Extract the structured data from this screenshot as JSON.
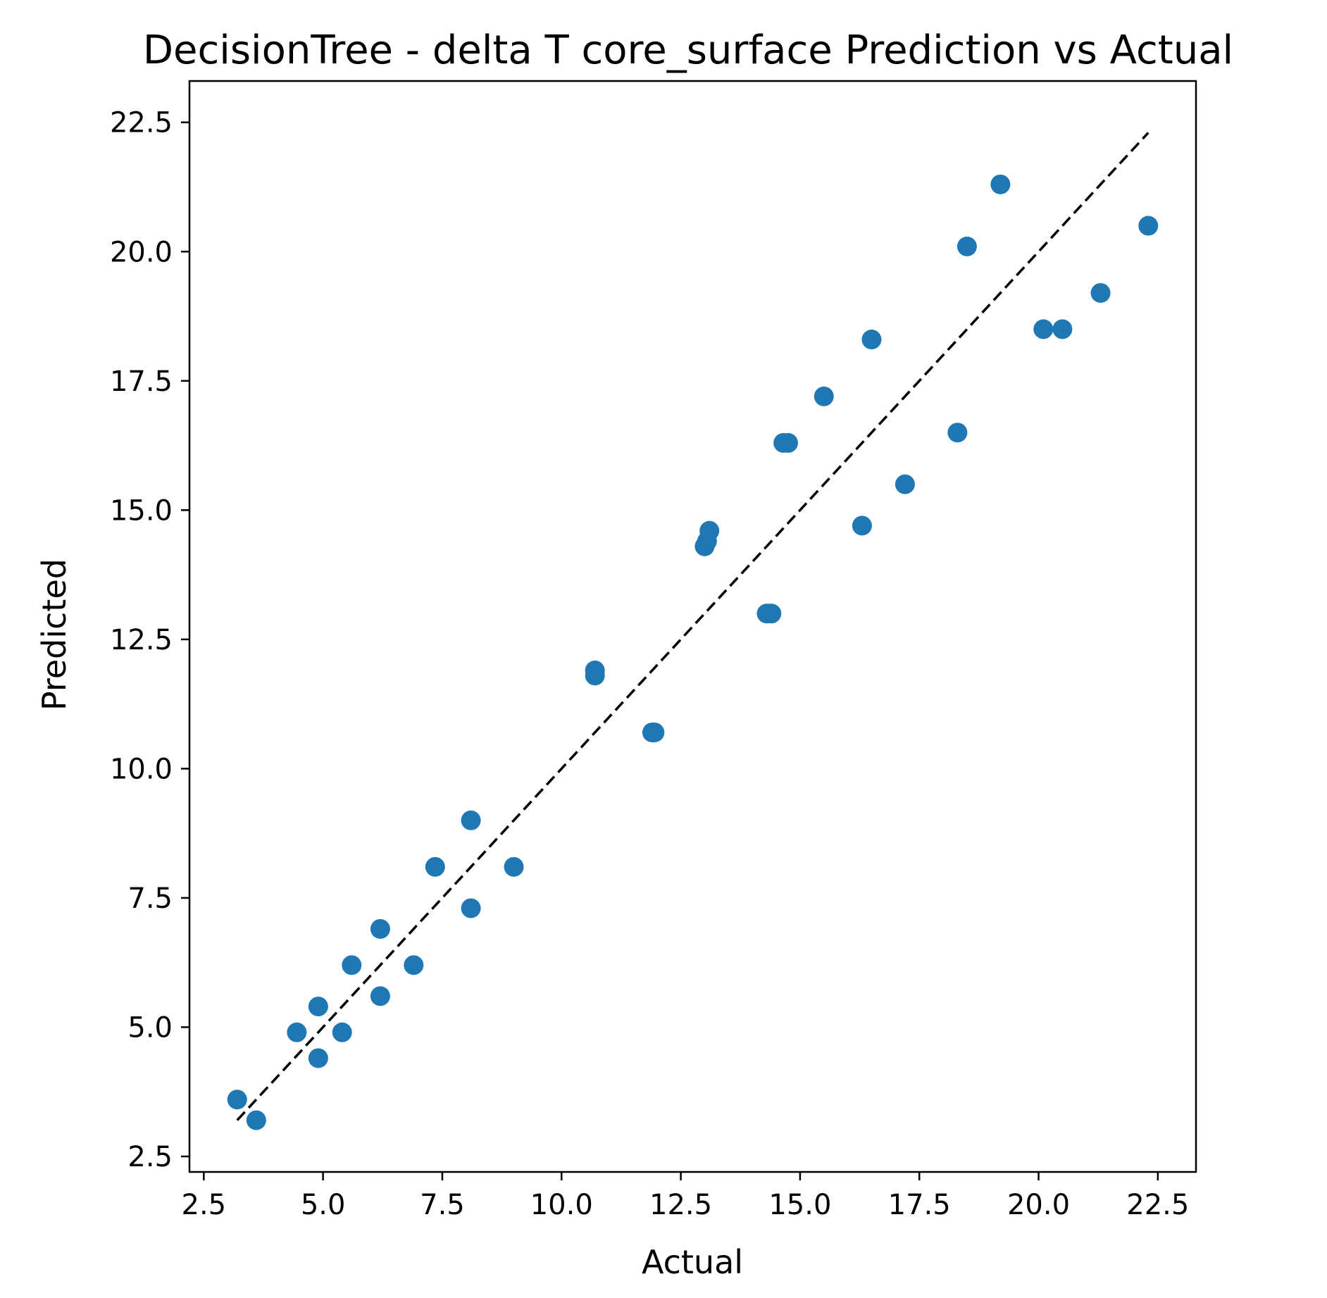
{
  "chart_data": {
    "type": "scatter",
    "title": "DecisionTree - delta T core_surface Prediction vs Actual",
    "xlabel": "Actual",
    "ylabel": "Predicted",
    "xlim": [
      2.2,
      23.3
    ],
    "ylim": [
      2.2,
      23.3
    ],
    "xticks": [
      2.5,
      5.0,
      7.5,
      10.0,
      12.5,
      15.0,
      17.5,
      20.0,
      22.5
    ],
    "yticks": [
      2.5,
      5.0,
      7.5,
      10.0,
      12.5,
      15.0,
      17.5,
      20.0,
      22.5
    ],
    "xtick_labels": [
      "2.5",
      "5.0",
      "7.5",
      "10.0",
      "12.5",
      "15.0",
      "17.5",
      "20.0",
      "22.5"
    ],
    "ytick_labels": [
      "2.5",
      "5.0",
      "7.5",
      "10.0",
      "12.5",
      "15.0",
      "17.5",
      "20.0",
      "22.5"
    ],
    "grid": false,
    "marker_color": "#1f77b4",
    "reference_line": {
      "style": "dashed",
      "color": "#000000",
      "from": [
        3.2,
        3.2
      ],
      "to": [
        22.3,
        22.3
      ]
    },
    "series": [
      {
        "name": "predictions",
        "x": [
          3.2,
          3.6,
          4.45,
          4.9,
          4.9,
          5.4,
          5.6,
          6.2,
          6.2,
          6.9,
          7.35,
          8.1,
          8.1,
          9.0,
          10.7,
          10.7,
          11.9,
          11.95,
          13.0,
          13.05,
          13.1,
          14.3,
          14.4,
          14.65,
          14.75,
          15.5,
          16.3,
          16.5,
          17.2,
          18.3,
          18.5,
          19.2,
          20.1,
          20.5,
          21.3,
          22.3
        ],
        "y": [
          3.6,
          3.2,
          4.9,
          5.4,
          4.4,
          4.9,
          6.2,
          6.9,
          5.6,
          6.2,
          8.1,
          9.0,
          7.3,
          8.1,
          11.9,
          11.8,
          10.7,
          10.7,
          14.3,
          14.4,
          14.6,
          13.0,
          13.0,
          16.3,
          16.3,
          17.2,
          14.7,
          18.3,
          15.5,
          16.5,
          20.1,
          21.3,
          18.5,
          18.5,
          19.2,
          20.5
        ]
      }
    ]
  }
}
